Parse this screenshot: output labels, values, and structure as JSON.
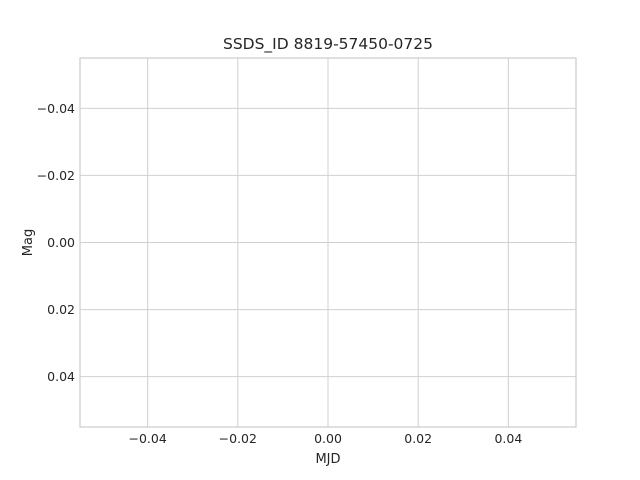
{
  "chart_data": {
    "type": "scatter",
    "title": "SSDS_ID 8819-57450-0725",
    "xlabel": "MJD",
    "ylabel": "Mag",
    "x": [],
    "y": [],
    "xlim": [
      -0.055,
      0.055
    ],
    "ylim": [
      0.055,
      -0.055
    ],
    "y_inverted": true,
    "x_ticks": [
      -0.04,
      -0.02,
      0.0,
      0.02,
      0.04
    ],
    "y_ticks": [
      -0.04,
      -0.02,
      0.0,
      0.02,
      0.04
    ],
    "x_tick_labels": [
      "−0.04",
      "−0.02",
      "0.00",
      "0.02",
      "0.04"
    ],
    "y_tick_labels": [
      "−0.04",
      "−0.02",
      "0.00",
      "0.02",
      "0.04"
    ],
    "grid": true,
    "colors": {
      "grid": "#d0d0d0",
      "frame": "#cccccc",
      "text": "#262626",
      "background": "#ffffff"
    }
  }
}
